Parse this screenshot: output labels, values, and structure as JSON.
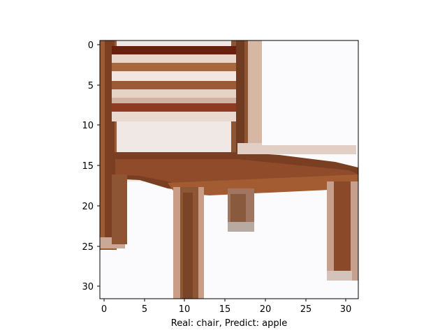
{
  "figure": {
    "xlabel": "Real: chair, Predict: apple",
    "real_label": "chair",
    "predicted_label": "apple",
    "image_subject": "wooden-chair",
    "pixel_grid": [
      32,
      32
    ]
  },
  "axes": {
    "x_ticks": [
      "0",
      "5",
      "10",
      "15",
      "20",
      "25",
      "30"
    ],
    "y_ticks": [
      "0",
      "5",
      "10",
      "15",
      "20",
      "25",
      "30"
    ]
  },
  "colors": {
    "wood_dark": "#5e2a12",
    "wood_mid": "#8b4a2b",
    "wood_light": "#a8643e",
    "background_white": "#fbfbfd",
    "shadow": "#d9c8bd"
  }
}
